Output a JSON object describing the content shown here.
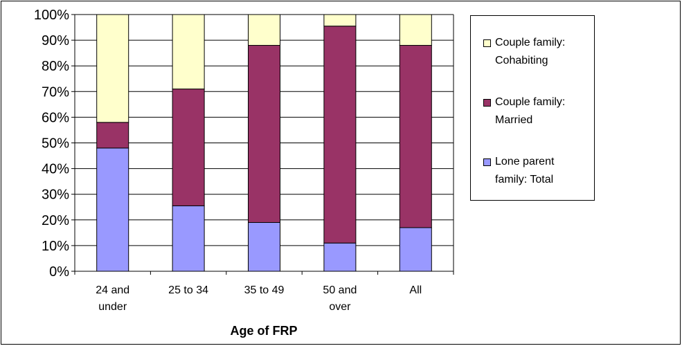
{
  "chart_data": {
    "type": "bar",
    "stacked": true,
    "title": "",
    "xlabel": "Age of FRP",
    "ylabel": "",
    "ylim": [
      0,
      100
    ],
    "y_ticks": [
      "0%",
      "10%",
      "20%",
      "30%",
      "40%",
      "50%",
      "60%",
      "70%",
      "80%",
      "90%",
      "100%"
    ],
    "categories": [
      [
        "24 and",
        "under"
      ],
      [
        "25 to 34"
      ],
      [
        "35 to 49"
      ],
      [
        "50 and",
        "over"
      ],
      [
        "All"
      ]
    ],
    "series": [
      {
        "name": "Lone parent family: Total",
        "legend_lines": [
          "Lone parent",
          "family: Total"
        ],
        "color": "#9999ff",
        "values": [
          48,
          25.5,
          19,
          11,
          17
        ]
      },
      {
        "name": "Couple family: Married",
        "legend_lines": [
          "Couple family:",
          "Married"
        ],
        "color": "#993366",
        "values": [
          10,
          45.5,
          69,
          84.5,
          71
        ]
      },
      {
        "name": "Couple family: Cohabiting",
        "legend_lines": [
          "Couple family:",
          "Cohabiting"
        ],
        "color": "#ffffcc",
        "values": [
          42,
          29,
          12,
          4.5,
          12
        ]
      }
    ],
    "legend_position": "right",
    "grid": true
  }
}
